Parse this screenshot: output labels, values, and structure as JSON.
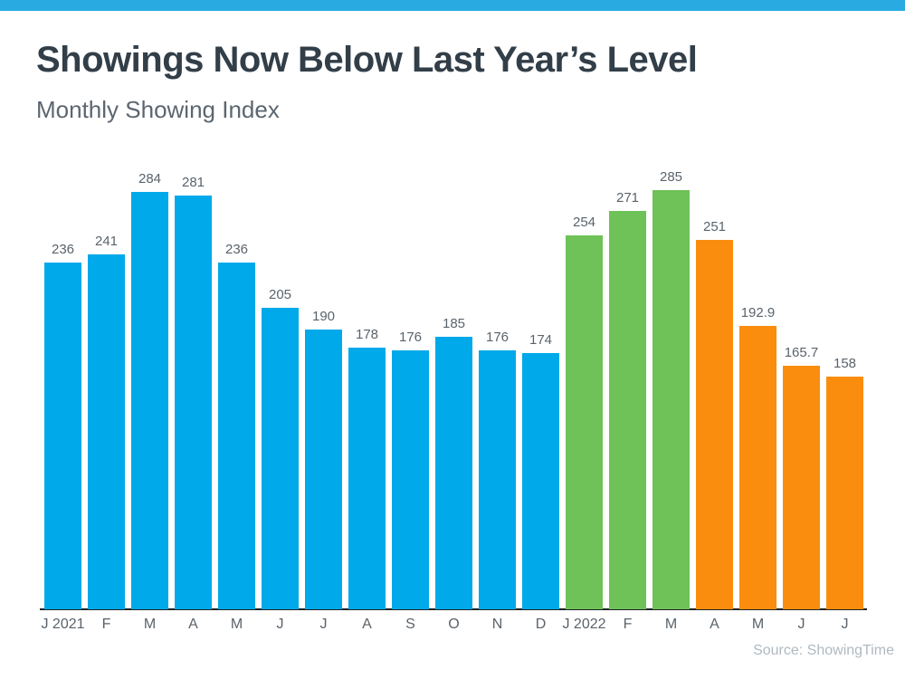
{
  "page": {
    "accent_color": "#29ABE2",
    "title": "Showings Now Below Last Year’s Level",
    "subtitle": "Monthly Showing Index",
    "source": "Source: ShowingTime"
  },
  "chart_data": {
    "type": "bar",
    "title": "Showings Now Below Last Year’s Level",
    "subtitle": "Monthly Showing Index",
    "categories": [
      "J 2021",
      "F",
      "M",
      "A",
      "M",
      "J",
      "J",
      "A",
      "S",
      "O",
      "N",
      "D",
      "J 2022",
      "F",
      "M",
      "A",
      "M",
      "J",
      "J"
    ],
    "values": [
      236,
      241,
      284,
      281,
      236,
      205,
      190,
      178,
      176,
      185,
      176,
      174,
      254,
      271,
      285,
      251,
      192.9,
      165.7,
      158
    ],
    "data_labels": [
      "236",
      "241",
      "284",
      "281",
      "236",
      "205",
      "190",
      "178",
      "176",
      "185",
      "176",
      "174",
      "254",
      "271",
      "285",
      "251",
      "192.9",
      "165.7",
      "158"
    ],
    "bar_colors": [
      "#00A9E9",
      "#00A9E9",
      "#00A9E9",
      "#00A9E9",
      "#00A9E9",
      "#00A9E9",
      "#00A9E9",
      "#00A9E9",
      "#00A9E9",
      "#00A9E9",
      "#00A9E9",
      "#00A9E9",
      "#6EC258",
      "#6EC258",
      "#6EC258",
      "#FA8D0E",
      "#FA8D0E",
      "#FA8D0E",
      "#FA8D0E"
    ],
    "color_legend": {
      "blue": "#00A9E9",
      "green": "#6EC258",
      "orange": "#FA8D0E"
    },
    "xlabel": "",
    "ylabel": "",
    "ylim": [
      0,
      300
    ],
    "grid": false,
    "legend_position": "none",
    "axis_line_color": "#1f2326",
    "source": "Source: ShowingTime"
  }
}
